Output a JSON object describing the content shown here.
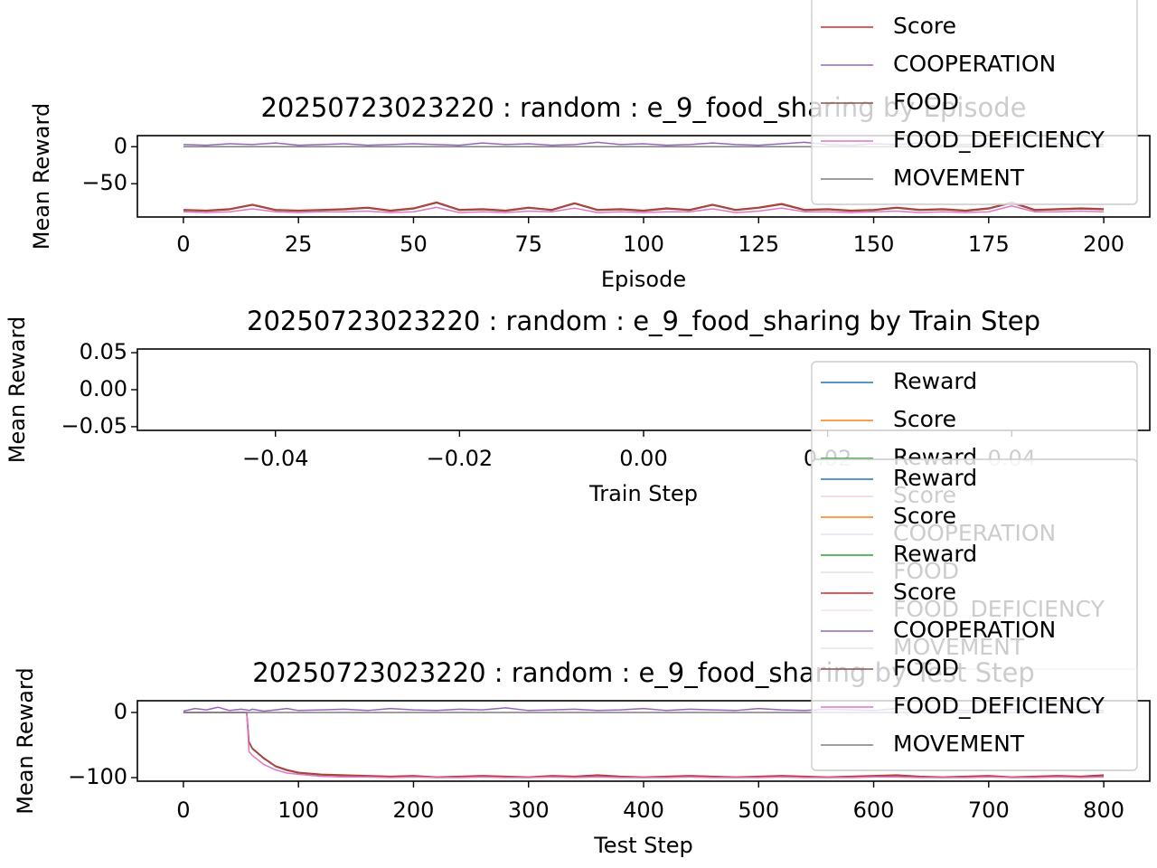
{
  "chart_data": [
    {
      "type": "line",
      "title": "20250723023220 : random : e_9_food_sharing by Episode",
      "xlabel": "Episode",
      "ylabel": "Mean Reward",
      "xlim": [
        -10,
        210
      ],
      "ylim": [
        -95,
        15
      ],
      "xticks": [
        0,
        25,
        50,
        75,
        100,
        125,
        150,
        175,
        200
      ],
      "yticks": [
        0,
        {
          "value": -50,
          "label": "−50"
        }
      ],
      "x": [
        0,
        5,
        10,
        15,
        20,
        25,
        30,
        35,
        40,
        45,
        50,
        55,
        60,
        65,
        70,
        75,
        80,
        85,
        90,
        95,
        100,
        105,
        110,
        115,
        120,
        125,
        130,
        135,
        140,
        145,
        150,
        155,
        160,
        165,
        170,
        175,
        180,
        185,
        190,
        195,
        200
      ],
      "series": [
        {
          "name": "Score",
          "color": "#d62728",
          "values": [
            -85,
            -86,
            -84,
            -78,
            -85,
            -86,
            -85,
            -84,
            -82,
            -86,
            -83,
            -75,
            -85,
            -84,
            -86,
            -82,
            -85,
            -76,
            -85,
            -84,
            -86,
            -83,
            -85,
            -78,
            -85,
            -82,
            -77,
            -85,
            -84,
            -86,
            -85,
            -82,
            -85,
            -84,
            -86,
            -83,
            -75,
            -85,
            -84,
            -83,
            -84
          ]
        },
        {
          "name": "COOPERATION",
          "color": "#9467bd",
          "values": [
            3,
            2,
            4,
            3,
            5,
            2,
            3,
            4,
            2,
            3,
            4,
            3,
            2,
            5,
            3,
            4,
            2,
            3,
            6,
            3,
            4,
            2,
            3,
            5,
            3,
            2,
            4,
            6,
            3,
            2,
            4,
            3,
            5,
            2,
            3,
            4,
            3,
            2,
            4,
            3,
            3
          ]
        },
        {
          "name": "FOOD",
          "color": "#8c564b",
          "values": [
            -86,
            -87,
            -85,
            -79,
            -86,
            -87,
            -86,
            -85,
            -83,
            -87,
            -84,
            -76,
            -86,
            -85,
            -87,
            -83,
            -86,
            -77,
            -86,
            -85,
            -87,
            -84,
            -86,
            -79,
            -86,
            -83,
            -78,
            -86,
            -85,
            -87,
            -86,
            -83,
            -86,
            -85,
            -87,
            -84,
            -76,
            -86,
            -85,
            -84,
            -85
          ]
        },
        {
          "name": "FOOD_DEFICIENCY",
          "color": "#e377c2",
          "values": [
            -88,
            -89,
            -88,
            -84,
            -88,
            -89,
            -88,
            -88,
            -87,
            -89,
            -88,
            -82,
            -89,
            -88,
            -89,
            -87,
            -88,
            -83,
            -89,
            -88,
            -89,
            -88,
            -88,
            -84,
            -89,
            -87,
            -83,
            -88,
            -88,
            -89,
            -88,
            -87,
            -89,
            -88,
            -89,
            -88,
            -80,
            -88,
            -88,
            -87,
            -88
          ]
        },
        {
          "name": "MOVEMENT",
          "color": "#7f7f7f",
          "values": [
            0,
            0,
            0,
            0,
            0,
            0,
            0,
            0,
            0,
            0,
            0,
            0,
            0,
            0,
            0,
            0,
            0,
            0,
            0,
            0,
            0,
            0,
            0,
            0,
            0,
            0,
            0,
            0,
            0,
            0,
            0,
            0,
            0,
            0,
            0,
            0,
            0,
            0,
            0,
            0,
            0
          ]
        }
      ]
    },
    {
      "type": "line",
      "title": "20250723023220 : random : e_9_food_sharing by Train Step",
      "xlabel": "Train Step",
      "ylabel": "Mean Reward",
      "xlim": [
        -0.055,
        0.055
      ],
      "ylim": [
        -0.055,
        0.055
      ],
      "xticks": [
        {
          "value": -0.04,
          "label": "−0.04"
        },
        {
          "value": -0.02,
          "label": "−0.02"
        },
        {
          "value": 0,
          "label": "0.00"
        },
        {
          "value": 0.02,
          "label": "0.02"
        },
        {
          "value": 0.04,
          "label": "0.04"
        }
      ],
      "yticks": [
        {
          "value": 0.05,
          "label": "0.05"
        },
        {
          "value": 0,
          "label": "0.00"
        },
        {
          "value": -0.05,
          "label": "−0.05"
        }
      ],
      "x": [],
      "series": [
        {
          "name": "Reward",
          "color": "#1f77b4",
          "values": []
        },
        {
          "name": "Score",
          "color": "#ff7f0e",
          "values": []
        },
        {
          "name": "Reward",
          "color": "#2ca02c",
          "values": []
        },
        {
          "name": "Score",
          "color": "#d62728",
          "values": []
        },
        {
          "name": "COOPERATION",
          "color": "#9467bd",
          "values": []
        },
        {
          "name": "FOOD",
          "color": "#8c564b",
          "values": []
        },
        {
          "name": "FOOD_DEFICIENCY",
          "color": "#e377c2",
          "values": []
        },
        {
          "name": "MOVEMENT",
          "color": "#7f7f7f",
          "values": []
        }
      ]
    },
    {
      "type": "line",
      "title": "20250723023220 : random : e_9_food_sharing by Test Step",
      "xlabel": "Test Step",
      "ylabel": "Mean Reward",
      "xlim": [
        -40,
        840
      ],
      "ylim": [
        -105.5,
        18
      ],
      "xticks": [
        0,
        100,
        200,
        300,
        400,
        500,
        600,
        700,
        800
      ],
      "yticks": [
        0,
        {
          "value": -100,
          "label": "−100"
        }
      ],
      "x": [
        0,
        10,
        20,
        30,
        40,
        50,
        55,
        57,
        60,
        70,
        80,
        90,
        100,
        120,
        140,
        160,
        180,
        200,
        220,
        240,
        260,
        280,
        300,
        320,
        340,
        360,
        380,
        400,
        420,
        440,
        460,
        480,
        500,
        520,
        540,
        560,
        580,
        600,
        620,
        640,
        660,
        680,
        700,
        720,
        740,
        760,
        780,
        800
      ],
      "series": [
        {
          "name": "Reward",
          "color": "#1f77b4",
          "values": [
            null,
            null,
            null,
            null,
            null,
            null,
            null,
            null,
            null,
            null,
            null,
            null,
            null,
            null,
            null,
            null,
            null,
            null,
            null,
            null,
            null,
            null,
            null,
            null,
            null,
            null,
            null,
            null,
            null,
            null,
            null,
            null,
            null,
            null,
            null,
            null,
            null,
            null,
            null,
            null,
            null,
            null,
            null,
            null,
            null,
            null,
            null,
            null
          ]
        },
        {
          "name": "Score",
          "color": "#ff7f0e",
          "values": [
            null,
            null,
            null,
            null,
            null,
            null,
            null,
            null,
            null,
            null,
            null,
            null,
            null,
            null,
            null,
            null,
            null,
            null,
            null,
            null,
            null,
            null,
            null,
            null,
            null,
            null,
            null,
            null,
            null,
            null,
            null,
            null,
            null,
            null,
            null,
            null,
            null,
            null,
            null,
            null,
            null,
            null,
            null,
            null,
            null,
            null,
            null,
            null
          ]
        },
        {
          "name": "Reward",
          "color": "#2ca02c",
          "values": [
            null,
            null,
            null,
            null,
            null,
            null,
            null,
            null,
            null,
            null,
            null,
            null,
            null,
            null,
            null,
            null,
            null,
            null,
            null,
            null,
            null,
            null,
            null,
            null,
            null,
            null,
            null,
            null,
            null,
            null,
            null,
            null,
            null,
            null,
            null,
            null,
            null,
            null,
            null,
            null,
            null,
            null,
            null,
            null,
            null,
            null,
            null,
            null
          ]
        },
        {
          "name": "Score",
          "color": "#d62728",
          "values": [
            0,
            0,
            0,
            0,
            0,
            0,
            0,
            -45,
            -55,
            -70,
            -82,
            -88,
            -92,
            -95,
            -96,
            -97,
            -98,
            -97,
            -99,
            -98,
            -97,
            -98,
            -99,
            -97,
            -98,
            -96,
            -98,
            -99,
            -98,
            -97,
            -98,
            -99,
            -98,
            -97,
            -98,
            -99,
            -98,
            -97,
            -96,
            -98,
            -99,
            -98,
            -97,
            -99,
            -98,
            -97,
            -98,
            -96
          ]
        },
        {
          "name": "COOPERATION",
          "color": "#9467bd",
          "values": [
            2,
            6,
            4,
            8,
            3,
            5,
            4,
            3,
            5,
            2,
            4,
            6,
            3,
            4,
            5,
            3,
            6,
            4,
            3,
            5,
            4,
            7,
            3,
            4,
            5,
            3,
            4,
            6,
            3,
            5,
            4,
            3,
            6,
            4,
            3,
            5,
            4,
            3,
            6,
            4,
            5,
            3,
            4,
            5,
            3,
            4,
            5,
            3
          ]
        },
        {
          "name": "FOOD",
          "color": "#8c564b",
          "values": [
            0,
            0,
            0,
            0,
            0,
            0,
            0,
            -46,
            -56,
            -71,
            -83,
            -89,
            -93,
            -96,
            -97,
            -98,
            -99,
            -98,
            -100,
            -99,
            -98,
            -99,
            -100,
            -98,
            -99,
            -97,
            -99,
            -100,
            -99,
            -98,
            -99,
            -100,
            -99,
            -98,
            -99,
            -100,
            -99,
            -98,
            -97,
            -99,
            -100,
            -99,
            -98,
            -100,
            -99,
            -98,
            -99,
            -97
          ]
        },
        {
          "name": "FOOD_DEFICIENCY",
          "color": "#e377c2",
          "values": [
            0,
            0,
            0,
            0,
            0,
            0,
            0,
            -60,
            -66,
            -80,
            -88,
            -93,
            -95,
            -98,
            -99,
            -99,
            -100,
            -99,
            -100,
            -100,
            -99,
            -100,
            -100,
            -99,
            -100,
            -99,
            -100,
            -100,
            -100,
            -99,
            -100,
            -100,
            -100,
            -99,
            -100,
            -100,
            -100,
            -99,
            -99,
            -100,
            -100,
            -100,
            -99,
            -100,
            -100,
            -99,
            -100,
            -99
          ]
        },
        {
          "name": "MOVEMENT",
          "color": "#7f7f7f",
          "values": [
            0,
            0,
            0,
            0,
            0,
            0,
            0,
            0,
            0,
            0,
            0,
            0,
            0,
            0,
            0,
            0,
            0,
            0,
            0,
            0,
            0,
            0,
            0,
            0,
            0,
            0,
            0,
            0,
            0,
            0,
            0,
            0,
            0,
            0,
            0,
            0,
            0,
            0,
            0,
            0,
            0,
            0,
            0,
            0,
            0,
            0,
            0,
            0
          ]
        }
      ]
    }
  ]
}
